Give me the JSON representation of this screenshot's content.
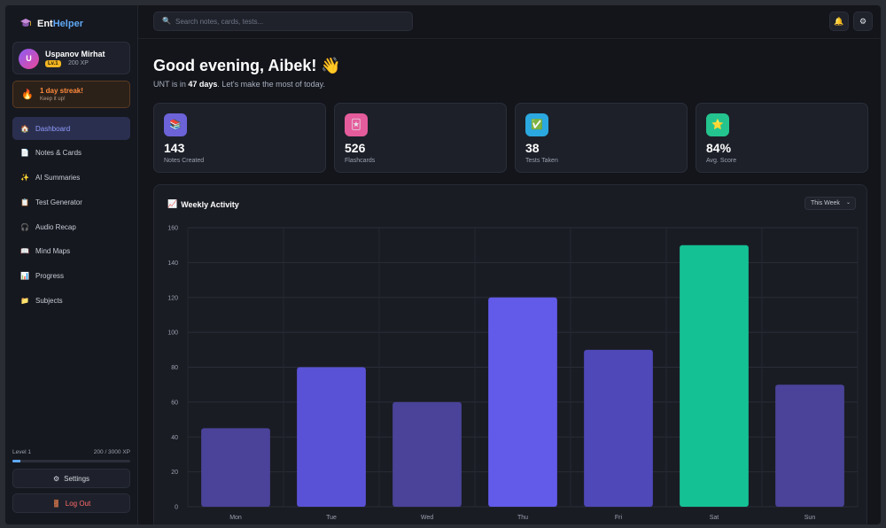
{
  "brand": {
    "prefix": "Ent",
    "highlight": "Helper"
  },
  "user": {
    "initial": "U",
    "name": "Uspanov Mirhat",
    "level_badge": "Lv.1",
    "xp": "200 XP"
  },
  "streak": {
    "title": "1 day streak!",
    "subtitle": "Keep it up!"
  },
  "nav": [
    {
      "label": "Dashboard",
      "icon": "🏠",
      "active": true
    },
    {
      "label": "Notes & Cards",
      "icon": "📄"
    },
    {
      "label": "AI Summaries",
      "icon": "✨"
    },
    {
      "label": "Test Generator",
      "icon": "📋"
    },
    {
      "label": "Audio Recap",
      "icon": "🎧"
    },
    {
      "label": "Mind Maps",
      "icon": "📖"
    },
    {
      "label": "Progress",
      "icon": "📊"
    },
    {
      "label": "Subjects",
      "icon": "📁"
    }
  ],
  "level": {
    "label": "Level 1",
    "xp": "200 / 3000 XP",
    "progress": 0.0667
  },
  "footer": {
    "settings": "Settings",
    "logout": "Log Out"
  },
  "search": {
    "placeholder": "Search notes, cards, tests..."
  },
  "greeting": {
    "title": "Good evening, Aibek! 👋",
    "prefix": "UNT is in ",
    "days": "47 days",
    "suffix": ". Let's make the most of today."
  },
  "stats": [
    {
      "value": "143",
      "label": "Notes Created",
      "icon": "📚",
      "color": "#6c63d9"
    },
    {
      "value": "526",
      "label": "Flashcards",
      "icon": "🃏",
      "color": "#e45c9b"
    },
    {
      "value": "38",
      "label": "Tests Taken",
      "icon": "✅",
      "color": "#2ba8e0"
    },
    {
      "value": "84%",
      "label": "Avg. Score",
      "icon": "⭐",
      "color": "#24c48e"
    }
  ],
  "activity": {
    "title": "Weekly Activity",
    "icon": "📈",
    "range": "This Week"
  },
  "chart_data": {
    "type": "bar",
    "categories": [
      "Mon",
      "Tue",
      "Wed",
      "Thu",
      "Fri",
      "Sat",
      "Sun"
    ],
    "values": [
      45,
      80,
      60,
      120,
      90,
      150,
      70
    ],
    "ylim": [
      0,
      160
    ],
    "yticks": [
      0,
      20,
      40,
      60,
      80,
      100,
      120,
      140,
      160
    ],
    "grid": true,
    "colors": [
      "#4a4399",
      "#5a52d6",
      "#4a4399",
      "#625ae8",
      "#4f48b8",
      "#14c195",
      "#4a4399"
    ]
  }
}
